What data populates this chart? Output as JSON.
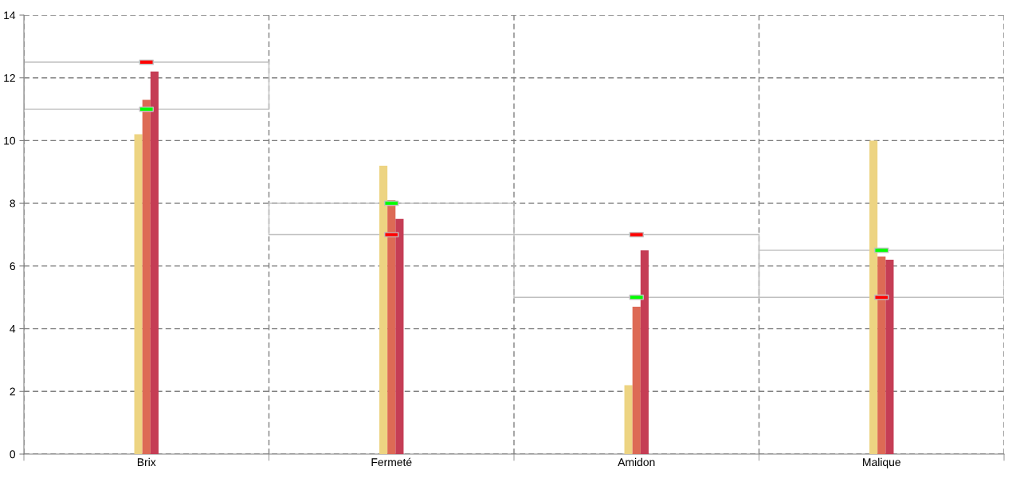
{
  "chart_data": {
    "type": "bar",
    "categories": [
      "Brix",
      "Fermeté",
      "Amidon",
      "Malique"
    ],
    "series": [
      {
        "color": "#edd482",
        "values": [
          10.2,
          9.2,
          2.2,
          10.0
        ]
      },
      {
        "color": "#dd6a55",
        "values": [
          11.3,
          8.1,
          4.7,
          6.3
        ]
      },
      {
        "color": "#c53d55",
        "values": [
          12.2,
          7.5,
          6.5,
          6.2
        ]
      },
      {
        "color": "#c0c0c0",
        "base": [
          11,
          7,
          5,
          5
        ],
        "values": [
          1.5,
          1,
          2,
          1.5
        ]
      },
      {
        "type": "scatter",
        "color": "#00ff00",
        "x": [
          "Brix",
          "Fermeté",
          "Amidon",
          "Malique"
        ],
        "values": [
          11,
          8,
          5,
          6.5
        ]
      },
      {
        "type": "scatter",
        "color": "#ff0000",
        "x": [
          "Brix",
          "Fermeté",
          "Amidon",
          "Malique"
        ],
        "values": [
          12.5,
          7,
          7,
          5
        ]
      }
    ],
    "ylim": [
      0,
      14
    ],
    "yticks": [
      0,
      2,
      4,
      6,
      8,
      10,
      12,
      14
    ],
    "grid": true
  }
}
